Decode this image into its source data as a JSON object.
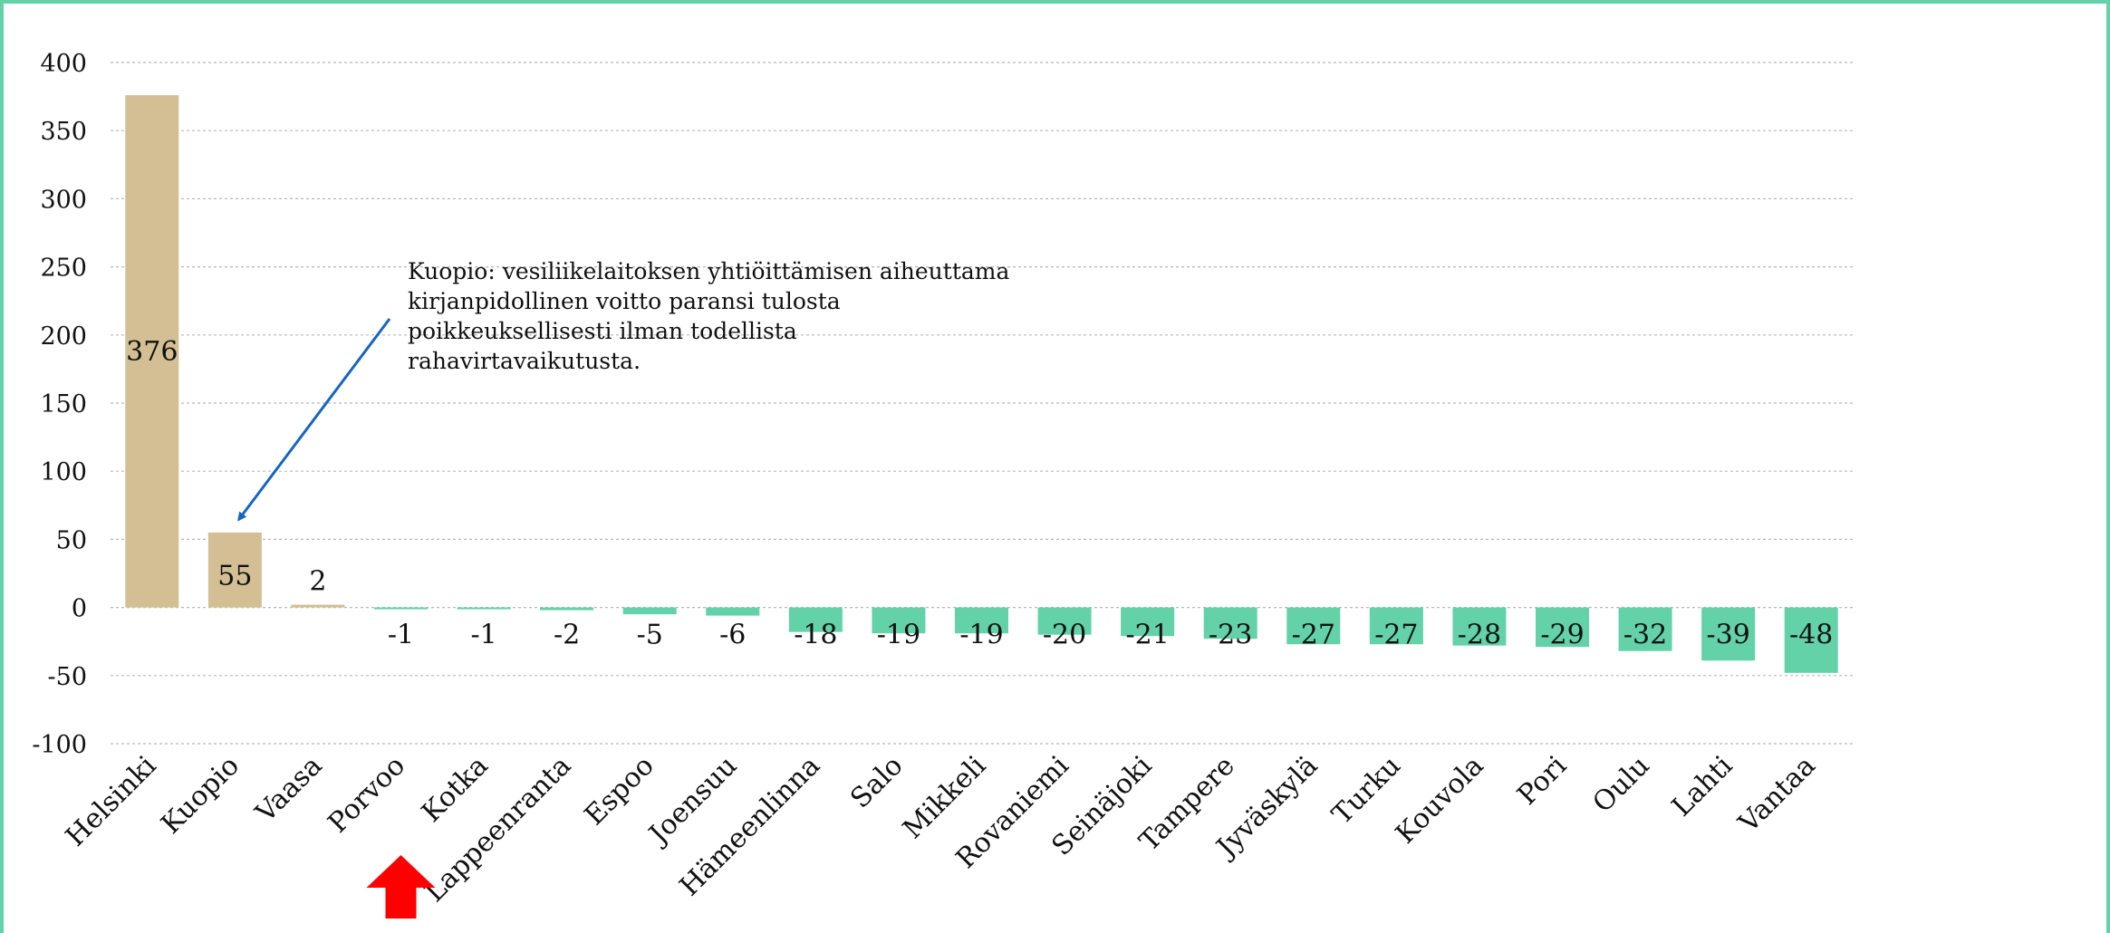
{
  "chart_data": {
    "type": "bar",
    "title": "",
    "xlabel": "",
    "ylabel": "",
    "ylim": [
      -100,
      400
    ],
    "yticks": [
      400,
      350,
      300,
      250,
      200,
      150,
      100,
      50,
      0,
      -50,
      -100
    ],
    "grid": true,
    "categories": [
      "Helsinki",
      "Kuopio",
      "Vaasa",
      "Porvoo",
      "Kotka",
      "Lappeenranta",
      "Espoo",
      "Joensuu",
      "Hämeenlinna",
      "Salo",
      "Mikkeli",
      "Rovaniemi",
      "Seinäjoki",
      "Tampere",
      "Jyväskylä",
      "Turku",
      "Kouvola",
      "Pori",
      "Oulu",
      "Lahti",
      "Vantaa"
    ],
    "values": [
      376,
      55,
      2,
      -1,
      -1,
      -2,
      -5,
      -6,
      -18,
      -19,
      -19,
      -20,
      -21,
      -23,
      -27,
      -27,
      -28,
      -29,
      -32,
      -39,
      -48
    ],
    "value_labels": [
      "376",
      "55",
      "2",
      "-1",
      "-1",
      "-2",
      "-5",
      "-6",
      "-18",
      "-19",
      "-19",
      "-20",
      "-21",
      "-23",
      "-27",
      "-27",
      "-28",
      "-29",
      "-32",
      "-39",
      "-48"
    ],
    "colors": {
      "positive": "#d3bf93",
      "negative": "#63d2a8",
      "gridline": "#b8b8b8",
      "arrow": "#1565c0",
      "marker": "#ff0000",
      "frame": "#63d2a8"
    },
    "annotation": {
      "lines": [
        "Kuopio: vesiliikelaitoksen yhtiöittämisen aiheuttama",
        "kirjanpidollinen voitto paransi tulosta",
        "poikkeuksellisesti ilman todellista",
        "rahavirtavaikutusta."
      ],
      "target_category": "Kuopio"
    },
    "highlight": {
      "category": "Porvoo",
      "marker": "red-up-arrow-icon"
    }
  }
}
